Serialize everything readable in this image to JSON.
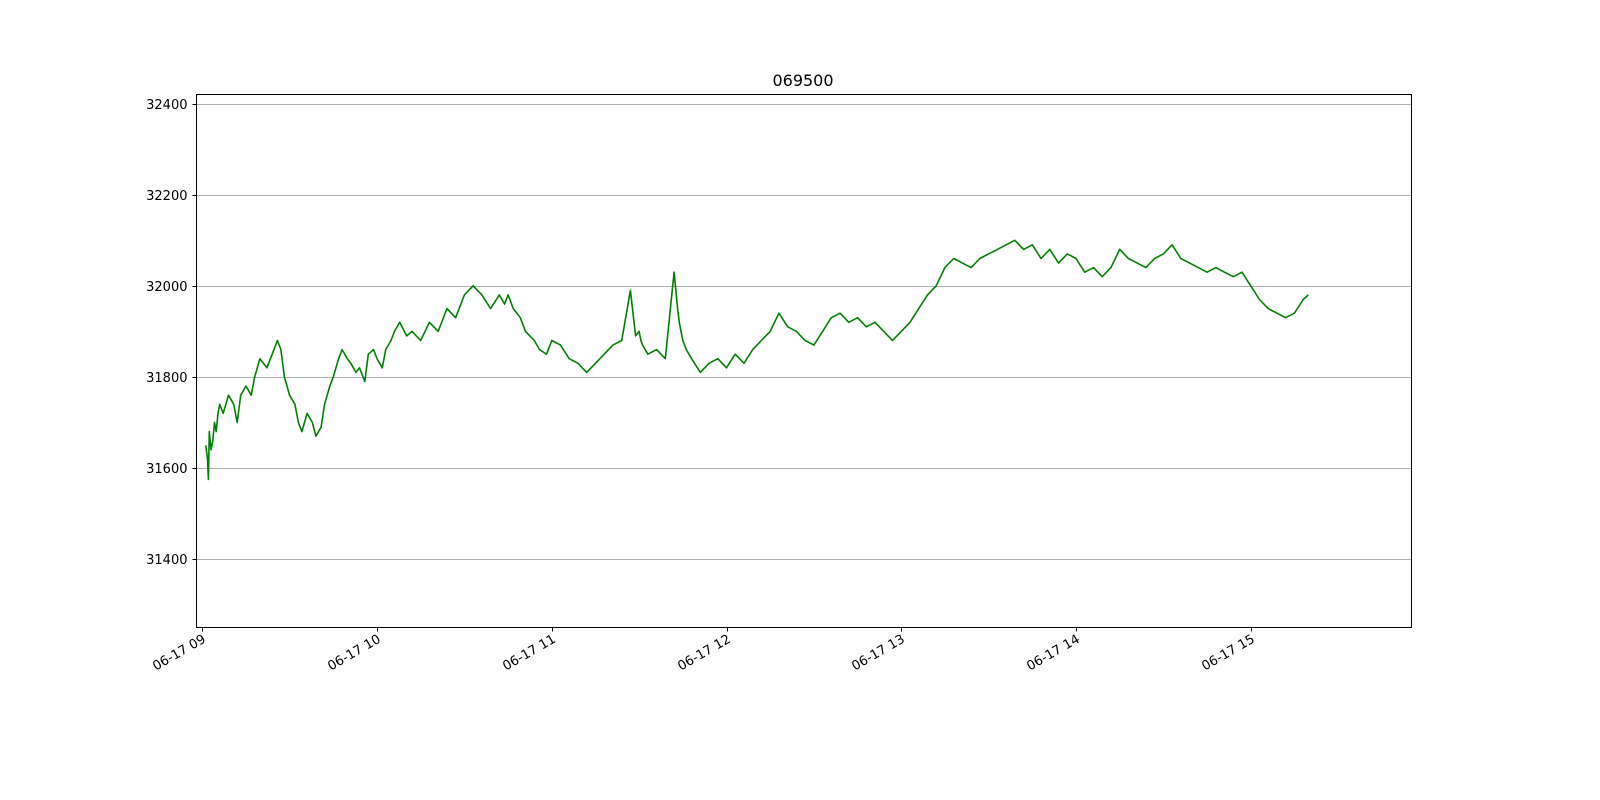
{
  "chart_data": {
    "type": "line",
    "title": "069500",
    "xlabel": "",
    "ylabel": "",
    "x_unit": "hour",
    "xlim": [
      8.967,
      15.92
    ],
    "ylim": [
      31250,
      32420
    ],
    "grid": {
      "x": false,
      "y": true
    },
    "x_ticks": [
      {
        "value": 9,
        "label": "06-17 09"
      },
      {
        "value": 10,
        "label": "06-17 10"
      },
      {
        "value": 11,
        "label": "06-17 11"
      },
      {
        "value": 12,
        "label": "06-17 12"
      },
      {
        "value": 13,
        "label": "06-17 13"
      },
      {
        "value": 14,
        "label": "06-17 14"
      },
      {
        "value": 15,
        "label": "06-17 15"
      }
    ],
    "y_ticks": [
      {
        "value": 31400,
        "label": "31400"
      },
      {
        "value": 31600,
        "label": "31600"
      },
      {
        "value": 31800,
        "label": "31800"
      },
      {
        "value": 32000,
        "label": "32000"
      },
      {
        "value": 32200,
        "label": "32200"
      },
      {
        "value": 32400,
        "label": "32400"
      }
    ],
    "series": [
      {
        "color": "#008000",
        "x": [
          9.02,
          9.03,
          9.035,
          9.04,
          9.05,
          9.06,
          9.07,
          9.08,
          9.09,
          9.1,
          9.12,
          9.15,
          9.18,
          9.2,
          9.22,
          9.25,
          9.28,
          9.3,
          9.33,
          9.37,
          9.4,
          9.43,
          9.45,
          9.47,
          9.5,
          9.53,
          9.55,
          9.57,
          9.6,
          9.63,
          9.65,
          9.68,
          9.7,
          9.73,
          9.75,
          9.78,
          9.8,
          9.83,
          9.85,
          9.88,
          9.9,
          9.93,
          9.95,
          9.98,
          10.0,
          10.03,
          10.05,
          10.08,
          10.1,
          10.13,
          10.17,
          10.2,
          10.25,
          10.3,
          10.35,
          10.4,
          10.45,
          10.5,
          10.55,
          10.6,
          10.65,
          10.7,
          10.73,
          10.75,
          10.78,
          10.82,
          10.85,
          10.9,
          10.93,
          10.97,
          11.0,
          11.05,
          11.1,
          11.15,
          11.2,
          11.3,
          11.35,
          11.4,
          11.45,
          11.48,
          11.5,
          11.51,
          11.52,
          11.55,
          11.6,
          11.65,
          11.7,
          11.72,
          11.73,
          11.75,
          11.77,
          11.8,
          11.85,
          11.9,
          11.95,
          12.0,
          12.05,
          12.1,
          12.15,
          12.2,
          12.25,
          12.3,
          12.35,
          12.4,
          12.45,
          12.5,
          12.55,
          12.6,
          12.65,
          12.7,
          12.75,
          12.8,
          12.85,
          12.9,
          12.95,
          13.0,
          13.05,
          13.1,
          13.15,
          13.2,
          13.25,
          13.3,
          13.35,
          13.4,
          13.45,
          13.5,
          13.55,
          13.6,
          13.65,
          13.7,
          13.75,
          13.8,
          13.85,
          13.9,
          13.95,
          14.0,
          14.05,
          14.1,
          14.15,
          14.2,
          14.25,
          14.3,
          14.35,
          14.4,
          14.45,
          14.5,
          14.55,
          14.6,
          14.65,
          14.7,
          14.75,
          14.8,
          14.85,
          14.9,
          14.95,
          15.0,
          15.05,
          15.1,
          15.15,
          15.2,
          15.25,
          15.3,
          15.33
        ],
        "y": [
          31650,
          31620,
          31575,
          31680,
          31640,
          31660,
          31700,
          31680,
          31720,
          31740,
          31720,
          31760,
          31740,
          31700,
          31760,
          31780,
          31760,
          31800,
          31840,
          31820,
          31850,
          31880,
          31860,
          31800,
          31760,
          31740,
          31700,
          31680,
          31720,
          31700,
          31670,
          31690,
          31740,
          31780,
          31800,
          31840,
          31860,
          31840,
          31830,
          31810,
          31820,
          31790,
          31850,
          31860,
          31840,
          31820,
          31860,
          31880,
          31900,
          31920,
          31890,
          31900,
          31880,
          31920,
          31900,
          31950,
          31930,
          31980,
          32000,
          31980,
          31950,
          31980,
          31960,
          31980,
          31950,
          31930,
          31900,
          31880,
          31860,
          31850,
          31880,
          31870,
          31840,
          31830,
          31810,
          31850,
          31870,
          31880,
          31990,
          31890,
          31900,
          31880,
          31870,
          31850,
          31860,
          31840,
          32030,
          31950,
          31920,
          31880,
          31860,
          31840,
          31810,
          31830,
          31840,
          31820,
          31850,
          31830,
          31860,
          31880,
          31900,
          31940,
          31910,
          31900,
          31880,
          31870,
          31900,
          31930,
          31940,
          31920,
          31930,
          31910,
          31920,
          31900,
          31880,
          31900,
          31920,
          31950,
          31980,
          32000,
          32040,
          32060,
          32050,
          32040,
          32060,
          32070,
          32080,
          32090,
          32100,
          32080,
          32090,
          32060,
          32080,
          32050,
          32070,
          32060,
          32030,
          32040,
          32020,
          32040,
          32080,
          32060,
          32050,
          32040,
          32060,
          32070,
          32090,
          32060,
          32050,
          32040,
          32030,
          32040,
          32030,
          32020,
          32030,
          32000,
          31970,
          31950,
          31940,
          31930,
          31940,
          31970,
          31980
        ]
      }
    ]
  }
}
